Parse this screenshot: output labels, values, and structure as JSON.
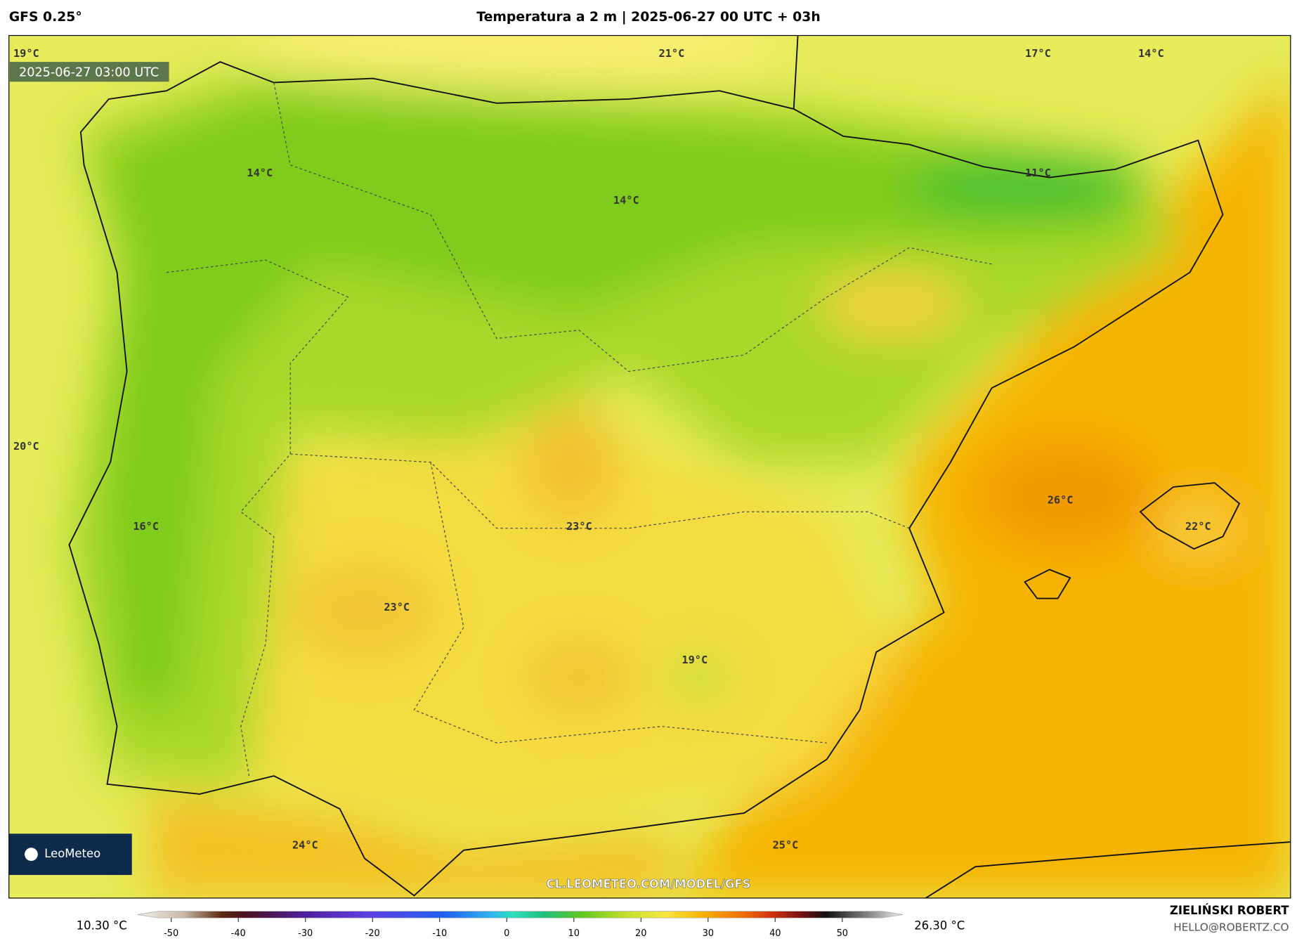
{
  "header": {
    "model": "GFS 0.25°",
    "title": "Temperatura a 2 m | 2025-06-27 00 UTC + 03h"
  },
  "map": {
    "timestamp": "2025-06-27 03:00 UTC",
    "watermark": "CL.LEOMETEO.COM/MODEL/GFS",
    "logo": "LeoMeteo",
    "labels": [
      "19°C",
      "21°C",
      "17°C",
      "14°C",
      "14°C",
      "14°C",
      "11°C",
      "20°C",
      "26°C",
      "22°C",
      "16°C",
      "23°C",
      "23°C",
      "19°C",
      "24°C",
      "25°C"
    ]
  },
  "colorbar": {
    "min_label": "10.30 °C",
    "max_label": "26.30 °C",
    "xlim": [
      -55,
      59
    ],
    "xticks": [
      -50,
      -40,
      -30,
      -20,
      -10,
      0,
      10,
      20,
      30,
      40,
      50
    ]
  },
  "footer": {
    "author": "ZIELIŃSKI ROBERT",
    "email": "HELLO@ROBERTZ.CO"
  }
}
